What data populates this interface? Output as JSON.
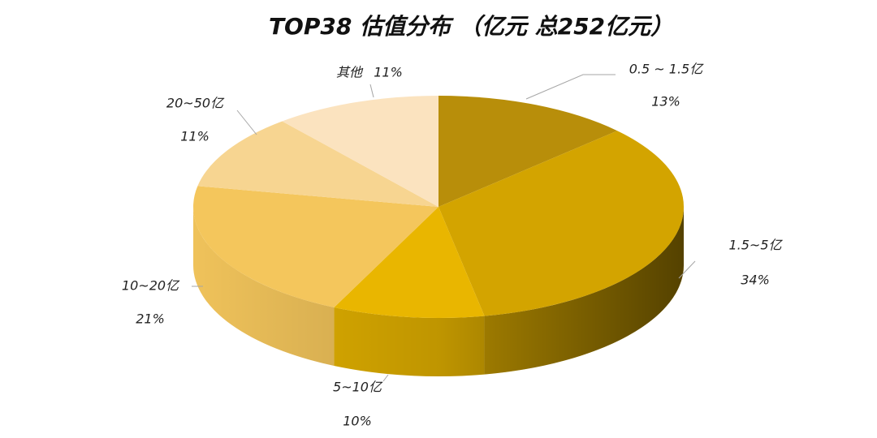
{
  "chart_data": {
    "type": "pie",
    "title": "TOP38 估值分布 （亿元 总252亿元）",
    "categories": [
      "0.5 ~ 1.5亿",
      "1.5~5亿",
      "5~10亿",
      "10~20亿",
      "20~50亿",
      "其他"
    ],
    "values": [
      13,
      34,
      10,
      21,
      11,
      11
    ],
    "value_labels": [
      "13%",
      "34%",
      "10%",
      "21%",
      "11%",
      "11%"
    ],
    "colors": [
      "#b88e0a",
      "#d3a400",
      "#e9b600",
      "#f4c65c",
      "#f7d591",
      "#fbe3bf"
    ]
  }
}
